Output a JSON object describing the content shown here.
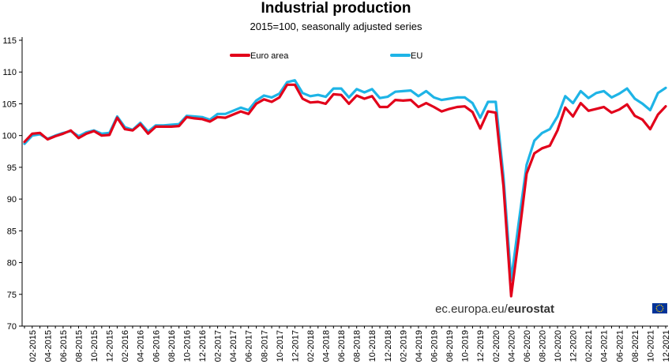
{
  "header": {
    "title": "Industrial production",
    "subtitle": "2015=100,  seasonally adjusted series"
  },
  "source": {
    "prefix": "ec.europa.eu/",
    "brand": "eurostat",
    "flag_color": "#003399",
    "star_color": "#FFCC00"
  },
  "chart_data": {
    "type": "line",
    "title": "Industrial production",
    "subtitle": "2015=100,  seasonally adjusted series",
    "xlabel": "",
    "ylabel": "",
    "ylim": [
      70,
      115
    ],
    "yticks": [
      70,
      75,
      80,
      85,
      90,
      95,
      100,
      105,
      110,
      115
    ],
    "grid": false,
    "legend_position": "top-center",
    "x_tick_labels": [
      "02-2015",
      "04-2015",
      "06-2015",
      "08-2015",
      "10-2015",
      "12-2015",
      "02-2016",
      "04-2016",
      "06-2016",
      "08-2016",
      "10-2016",
      "12-2016",
      "02-2017",
      "04-2017",
      "06-2017",
      "08-2017",
      "10-2017",
      "12-2017",
      "02-2018",
      "04-2018",
      "06-2018",
      "08-2018",
      "10-2018",
      "12-2018",
      "02-2019",
      "04-2019",
      "06-2019",
      "08-2019",
      "10-2019",
      "12-2019",
      "02-2020",
      "04-2020",
      "06-2020",
      "08-2020",
      "10-2020",
      "12-2020",
      "02-2021",
      "04-2021",
      "06-2021",
      "08-2021",
      "10-2021",
      "12-2021"
    ],
    "categories": [
      "01-2015",
      "02-2015",
      "03-2015",
      "04-2015",
      "05-2015",
      "06-2015",
      "07-2015",
      "08-2015",
      "09-2015",
      "10-2015",
      "11-2015",
      "12-2015",
      "01-2016",
      "02-2016",
      "03-2016",
      "04-2016",
      "05-2016",
      "06-2016",
      "07-2016",
      "08-2016",
      "09-2016",
      "10-2016",
      "11-2016",
      "12-2016",
      "01-2017",
      "02-2017",
      "03-2017",
      "04-2017",
      "05-2017",
      "06-2017",
      "07-2017",
      "08-2017",
      "09-2017",
      "10-2017",
      "11-2017",
      "12-2017",
      "01-2018",
      "02-2018",
      "03-2018",
      "04-2018",
      "05-2018",
      "06-2018",
      "07-2018",
      "08-2018",
      "09-2018",
      "10-2018",
      "11-2018",
      "12-2018",
      "01-2019",
      "02-2019",
      "03-2019",
      "04-2019",
      "05-2019",
      "06-2019",
      "07-2019",
      "08-2019",
      "09-2019",
      "10-2019",
      "11-2019",
      "12-2019",
      "01-2020",
      "02-2020",
      "03-2020",
      "04-2020",
      "05-2020",
      "06-2020",
      "07-2020",
      "08-2020",
      "09-2020",
      "10-2020",
      "11-2020",
      "12-2020",
      "01-2021",
      "02-2021",
      "03-2021",
      "04-2021",
      "05-2021",
      "06-2021",
      "07-2021",
      "08-2021",
      "09-2021",
      "10-2021",
      "11-2021",
      "12-2021"
    ],
    "series": [
      {
        "name": "Euro area",
        "color": "#E2001A",
        "values": [
          99.0,
          100.3,
          100.4,
          99.4,
          99.9,
          100.3,
          100.8,
          99.6,
          100.3,
          100.7,
          100.0,
          100.1,
          102.8,
          101.0,
          100.8,
          101.8,
          100.3,
          101.4,
          101.4,
          101.4,
          101.5,
          102.9,
          102.7,
          102.6,
          102.2,
          102.9,
          102.8,
          103.3,
          103.8,
          103.4,
          105.0,
          105.7,
          105.3,
          106.0,
          108.0,
          108.0,
          105.8,
          105.2,
          105.3,
          105.0,
          106.5,
          106.4,
          105.0,
          106.3,
          105.8,
          106.2,
          104.5,
          104.5,
          105.6,
          105.5,
          105.6,
          104.5,
          105.1,
          104.5,
          103.8,
          104.2,
          104.5,
          104.6,
          103.7,
          101.1,
          103.8,
          103.6,
          92.0,
          74.7,
          84.0,
          94.0,
          97.2,
          98.0,
          98.4,
          100.8,
          104.4,
          103.0,
          105.1,
          103.9,
          104.2,
          104.5,
          103.6,
          104.1,
          104.9,
          103.1,
          102.5,
          101.0,
          103.3,
          104.6
        ]
      },
      {
        "name": "EU",
        "color": "#1EB4E6",
        "values": [
          98.7,
          100.0,
          100.2,
          99.5,
          100.0,
          100.4,
          100.7,
          99.9,
          100.5,
          100.8,
          100.3,
          100.4,
          103.0,
          101.3,
          100.9,
          102.0,
          100.6,
          101.6,
          101.6,
          101.7,
          101.8,
          103.1,
          103.0,
          102.9,
          102.5,
          103.4,
          103.4,
          103.9,
          104.4,
          104.0,
          105.5,
          106.3,
          106.0,
          106.6,
          108.4,
          108.7,
          106.7,
          106.2,
          106.4,
          106.1,
          107.4,
          107.4,
          106.0,
          107.3,
          106.8,
          107.3,
          105.9,
          106.1,
          106.9,
          107.0,
          107.1,
          106.2,
          107.0,
          106.0,
          105.6,
          105.8,
          106.0,
          106.0,
          105.1,
          102.8,
          105.3,
          105.3,
          93.5,
          77.2,
          86.5,
          95.4,
          99.2,
          100.4,
          101.0,
          103.0,
          106.2,
          105.1,
          107.0,
          105.9,
          106.7,
          107.0,
          106.0,
          106.6,
          107.4,
          105.8,
          105.0,
          104.0,
          106.7,
          107.5
        ]
      }
    ]
  }
}
